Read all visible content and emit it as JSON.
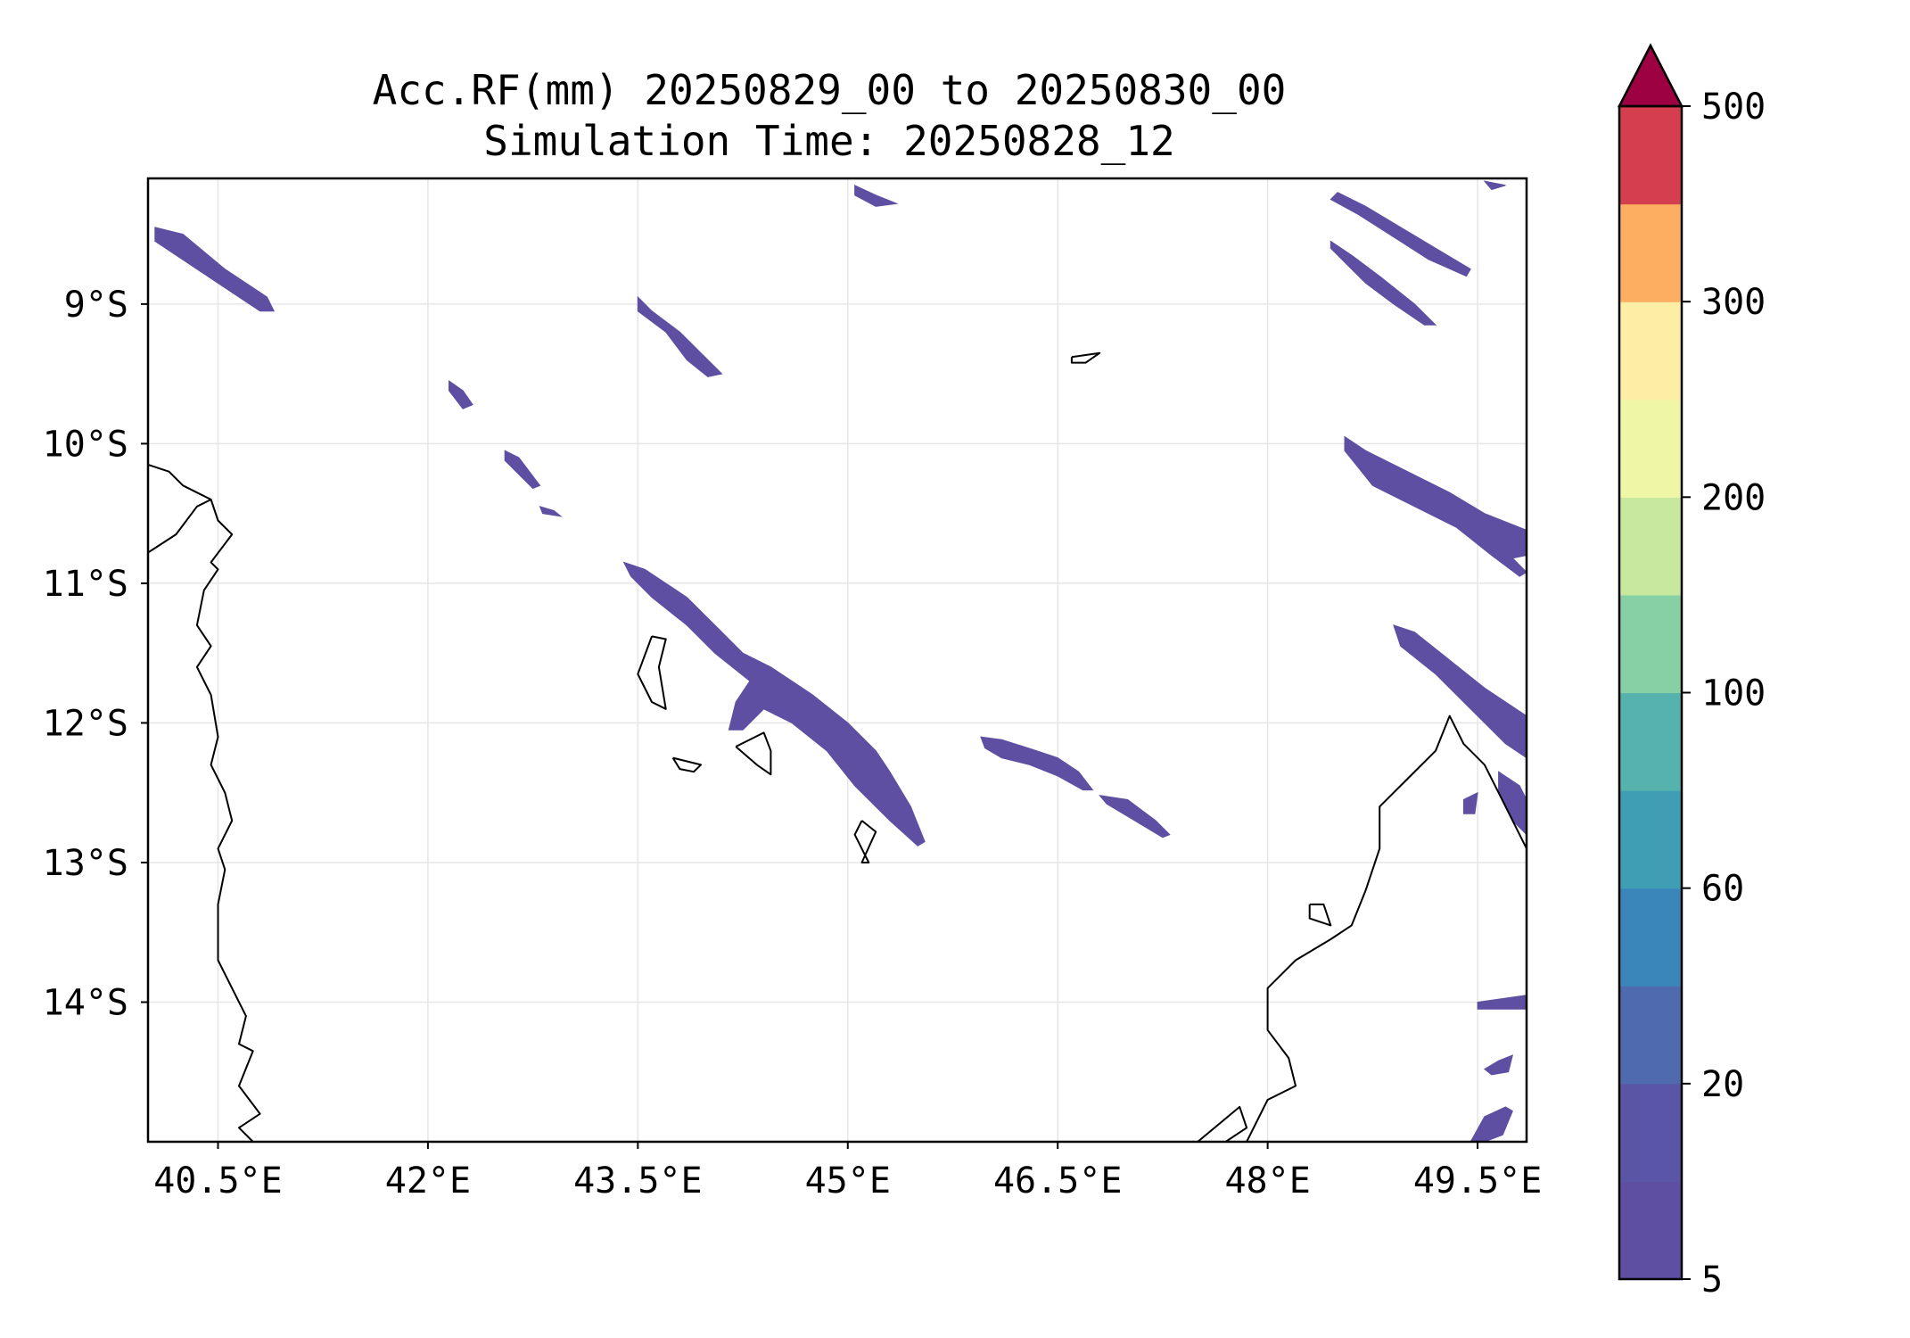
{
  "title": {
    "line1": "Acc.RF(mm) 20250829_00 to 20250830_00",
    "line2": "Simulation Time: 20250828_12"
  },
  "map": {
    "lon_range": [
      40.0,
      49.85
    ],
    "lat_range": [
      -15.0,
      -8.1
    ],
    "x_ticks": [
      {
        "value": 40.5,
        "label": "40.5°E"
      },
      {
        "value": 42.0,
        "label": "42°E"
      },
      {
        "value": 43.5,
        "label": "43.5°E"
      },
      {
        "value": 45.0,
        "label": "45°E"
      },
      {
        "value": 46.5,
        "label": "46.5°E"
      },
      {
        "value": 48.0,
        "label": "48°E"
      },
      {
        "value": 49.5,
        "label": "49.5°E"
      }
    ],
    "y_ticks": [
      {
        "value": -9,
        "label": "9°S"
      },
      {
        "value": -10,
        "label": "10°S"
      },
      {
        "value": -11,
        "label": "11°S"
      },
      {
        "value": -12,
        "label": "12°S"
      },
      {
        "value": -13,
        "label": "13°S"
      },
      {
        "value": -14,
        "label": "14°S"
      }
    ],
    "rain_color": "#5e4fa2",
    "rain_bands": [
      [
        [
          40.05,
          -8.45
        ],
        [
          40.25,
          -8.5
        ],
        [
          40.55,
          -8.75
        ],
        [
          40.85,
          -8.95
        ],
        [
          40.9,
          -9.05
        ],
        [
          40.8,
          -9.05
        ],
        [
          40.5,
          -8.85
        ],
        [
          40.2,
          -8.65
        ],
        [
          40.05,
          -8.55
        ]
      ],
      [
        [
          45.05,
          -8.15
        ],
        [
          45.2,
          -8.22
        ],
        [
          45.35,
          -8.28
        ],
        [
          45.2,
          -8.3
        ],
        [
          45.05,
          -8.22
        ]
      ],
      [
        [
          43.5,
          -8.95
        ],
        [
          43.6,
          -9.05
        ],
        [
          43.8,
          -9.2
        ],
        [
          44.0,
          -9.4
        ],
        [
          44.1,
          -9.5
        ],
        [
          44.0,
          -9.52
        ],
        [
          43.85,
          -9.4
        ],
        [
          43.7,
          -9.2
        ],
        [
          43.5,
          -9.05
        ]
      ],
      [
        [
          42.15,
          -9.55
        ],
        [
          42.25,
          -9.62
        ],
        [
          42.32,
          -9.72
        ],
        [
          42.25,
          -9.75
        ],
        [
          42.15,
          -9.62
        ]
      ],
      [
        [
          42.55,
          -10.05
        ],
        [
          42.65,
          -10.1
        ],
        [
          42.8,
          -10.3
        ],
        [
          42.75,
          -10.32
        ],
        [
          42.55,
          -10.12
        ]
      ],
      [
        [
          42.8,
          -10.45
        ],
        [
          42.9,
          -10.48
        ],
        [
          42.95,
          -10.52
        ],
        [
          42.82,
          -10.5
        ]
      ],
      [
        [
          43.4,
          -10.85
        ],
        [
          43.55,
          -10.9
        ],
        [
          43.85,
          -11.1
        ],
        [
          44.05,
          -11.3
        ],
        [
          44.25,
          -11.5
        ],
        [
          44.45,
          -11.6
        ],
        [
          44.75,
          -11.8
        ],
        [
          45.0,
          -12.0
        ],
        [
          45.2,
          -12.2
        ],
        [
          45.3,
          -12.35
        ],
        [
          45.45,
          -12.6
        ],
        [
          45.55,
          -12.85
        ],
        [
          45.5,
          -12.88
        ],
        [
          45.3,
          -12.7
        ],
        [
          45.05,
          -12.45
        ],
        [
          44.85,
          -12.2
        ],
        [
          44.6,
          -12.0
        ],
        [
          44.4,
          -11.9
        ],
        [
          44.25,
          -12.05
        ],
        [
          44.15,
          -12.05
        ],
        [
          44.2,
          -11.85
        ],
        [
          44.3,
          -11.7
        ],
        [
          44.05,
          -11.5
        ],
        [
          43.85,
          -11.3
        ],
        [
          43.6,
          -11.1
        ],
        [
          43.45,
          -10.95
        ]
      ],
      [
        [
          45.95,
          -12.1
        ],
        [
          46.1,
          -12.12
        ],
        [
          46.35,
          -12.2
        ],
        [
          46.5,
          -12.25
        ],
        [
          46.65,
          -12.35
        ],
        [
          46.75,
          -12.48
        ],
        [
          46.68,
          -12.48
        ],
        [
          46.5,
          -12.38
        ],
        [
          46.3,
          -12.3
        ],
        [
          46.1,
          -12.25
        ],
        [
          45.98,
          -12.18
        ]
      ],
      [
        [
          46.8,
          -12.52
        ],
        [
          47.0,
          -12.55
        ],
        [
          47.2,
          -12.7
        ],
        [
          47.3,
          -12.8
        ],
        [
          47.25,
          -12.82
        ],
        [
          47.05,
          -12.7
        ],
        [
          46.85,
          -12.58
        ]
      ],
      [
        [
          48.5,
          -8.2
        ],
        [
          48.7,
          -8.3
        ],
        [
          48.95,
          -8.45
        ],
        [
          49.2,
          -8.6
        ],
        [
          49.45,
          -8.75
        ],
        [
          49.42,
          -8.8
        ],
        [
          49.15,
          -8.68
        ],
        [
          48.9,
          -8.52
        ],
        [
          48.65,
          -8.36
        ],
        [
          48.45,
          -8.25
        ]
      ],
      [
        [
          48.45,
          -8.55
        ],
        [
          48.6,
          -8.65
        ],
        [
          48.8,
          -8.8
        ],
        [
          49.05,
          -9.0
        ],
        [
          49.2,
          -9.15
        ],
        [
          49.12,
          -9.15
        ],
        [
          48.9,
          -9.0
        ],
        [
          48.7,
          -8.85
        ],
        [
          48.45,
          -8.6
        ]
      ],
      [
        [
          49.55,
          -8.12
        ],
        [
          49.7,
          -8.15
        ],
        [
          49.6,
          -8.18
        ]
      ],
      [
        [
          48.55,
          -9.95
        ],
        [
          48.7,
          -10.05
        ],
        [
          49.0,
          -10.2
        ],
        [
          49.3,
          -10.35
        ],
        [
          49.55,
          -10.5
        ],
        [
          49.85,
          -10.62
        ],
        [
          49.85,
          -10.8
        ],
        [
          49.75,
          -10.82
        ],
        [
          49.85,
          -10.92
        ],
        [
          49.8,
          -10.95
        ],
        [
          49.6,
          -10.8
        ],
        [
          49.35,
          -10.6
        ],
        [
          49.05,
          -10.45
        ],
        [
          48.75,
          -10.3
        ],
        [
          48.55,
          -10.05
        ]
      ],
      [
        [
          48.9,
          -11.3
        ],
        [
          49.05,
          -11.35
        ],
        [
          49.3,
          -11.55
        ],
        [
          49.55,
          -11.75
        ],
        [
          49.85,
          -11.95
        ],
        [
          49.85,
          -12.25
        ],
        [
          49.7,
          -12.15
        ],
        [
          49.45,
          -11.9
        ],
        [
          49.2,
          -11.65
        ],
        [
          48.95,
          -11.45
        ]
      ],
      [
        [
          49.65,
          -12.35
        ],
        [
          49.8,
          -12.45
        ],
        [
          49.85,
          -12.55
        ],
        [
          49.85,
          -12.8
        ],
        [
          49.75,
          -12.7
        ],
        [
          49.65,
          -12.5
        ]
      ],
      [
        [
          49.4,
          -12.55
        ],
        [
          49.5,
          -12.5
        ],
        [
          49.48,
          -12.65
        ],
        [
          49.4,
          -12.65
        ]
      ],
      [
        [
          49.5,
          -14.0
        ],
        [
          49.85,
          -13.95
        ],
        [
          49.85,
          -14.05
        ],
        [
          49.7,
          -14.05
        ],
        [
          49.5,
          -14.05
        ]
      ],
      [
        [
          49.65,
          -14.42
        ],
        [
          49.75,
          -14.38
        ],
        [
          49.72,
          -14.5
        ],
        [
          49.6,
          -14.52
        ],
        [
          49.55,
          -14.48
        ]
      ],
      [
        [
          49.55,
          -14.82
        ],
        [
          49.7,
          -14.75
        ],
        [
          49.75,
          -14.78
        ],
        [
          49.68,
          -14.95
        ],
        [
          49.55,
          -15.0
        ],
        [
          49.45,
          -15.0
        ]
      ]
    ],
    "coastlines": [
      [
        [
          40.0,
          -10.15
        ],
        [
          40.15,
          -10.2
        ],
        [
          40.25,
          -10.3
        ],
        [
          40.35,
          -10.35
        ],
        [
          40.45,
          -10.4
        ],
        [
          40.5,
          -10.55
        ],
        [
          40.6,
          -10.65
        ],
        [
          40.45,
          -10.85
        ],
        [
          40.5,
          -10.9
        ],
        [
          40.4,
          -11.05
        ],
        [
          40.35,
          -11.3
        ],
        [
          40.45,
          -11.45
        ],
        [
          40.35,
          -11.6
        ],
        [
          40.45,
          -11.8
        ],
        [
          40.5,
          -12.1
        ],
        [
          40.45,
          -12.3
        ],
        [
          40.55,
          -12.5
        ],
        [
          40.6,
          -12.7
        ],
        [
          40.5,
          -12.9
        ],
        [
          40.55,
          -13.05
        ],
        [
          40.5,
          -13.3
        ],
        [
          40.5,
          -13.7
        ],
        [
          40.6,
          -13.9
        ],
        [
          40.7,
          -14.1
        ],
        [
          40.65,
          -14.3
        ],
        [
          40.75,
          -14.35
        ],
        [
          40.65,
          -14.6
        ],
        [
          40.8,
          -14.8
        ],
        [
          40.65,
          -14.9
        ],
        [
          40.75,
          -15.0
        ]
      ],
      [
        [
          40.0,
          -10.78
        ],
        [
          40.2,
          -10.65
        ],
        [
          40.35,
          -10.45
        ],
        [
          40.45,
          -10.4
        ]
      ],
      [
        [
          43.6,
          -11.38
        ],
        [
          43.5,
          -11.65
        ],
        [
          43.6,
          -11.85
        ],
        [
          43.7,
          -11.9
        ],
        [
          43.65,
          -11.6
        ],
        [
          43.7,
          -11.4
        ],
        [
          43.6,
          -11.38
        ]
      ],
      [
        [
          43.75,
          -12.25
        ],
        [
          43.95,
          -12.3
        ],
        [
          43.9,
          -12.35
        ],
        [
          43.8,
          -12.33
        ],
        [
          43.75,
          -12.25
        ]
      ],
      [
        [
          44.2,
          -12.17
        ],
        [
          44.4,
          -12.07
        ],
        [
          44.45,
          -12.2
        ],
        [
          44.45,
          -12.37
        ],
        [
          44.35,
          -12.3
        ],
        [
          44.2,
          -12.17
        ]
      ],
      [
        [
          45.1,
          -12.7
        ],
        [
          45.2,
          -12.78
        ],
        [
          45.1,
          -13.0
        ],
        [
          45.15,
          -13.0
        ],
        [
          45.05,
          -12.8
        ],
        [
          45.1,
          -12.7
        ]
      ],
      [
        [
          46.6,
          -9.38
        ],
        [
          46.8,
          -9.35
        ],
        [
          46.7,
          -9.42
        ],
        [
          46.6,
          -9.42
        ],
        [
          46.6,
          -9.38
        ]
      ],
      [
        [
          47.5,
          -15.0
        ],
        [
          47.8,
          -14.75
        ],
        [
          47.85,
          -14.9
        ],
        [
          47.7,
          -15.0
        ]
      ],
      [
        [
          47.85,
          -15.0
        ],
        [
          48.0,
          -14.7
        ],
        [
          48.2,
          -14.6
        ],
        [
          48.15,
          -14.4
        ],
        [
          48.0,
          -14.2
        ],
        [
          48.0,
          -13.9
        ],
        [
          48.2,
          -13.7
        ],
        [
          48.45,
          -13.55
        ],
        [
          48.6,
          -13.45
        ],
        [
          48.7,
          -13.2
        ],
        [
          48.8,
          -12.9
        ],
        [
          48.8,
          -12.6
        ],
        [
          49.0,
          -12.4
        ],
        [
          49.2,
          -12.2
        ],
        [
          49.3,
          -11.95
        ],
        [
          49.4,
          -12.15
        ],
        [
          49.55,
          -12.3
        ],
        [
          49.7,
          -12.6
        ],
        [
          49.85,
          -12.9
        ]
      ],
      [
        [
          48.3,
          -13.3
        ],
        [
          48.4,
          -13.3
        ],
        [
          48.45,
          -13.45
        ],
        [
          48.3,
          -13.4
        ],
        [
          48.3,
          -13.3
        ]
      ]
    ]
  },
  "colorbar": {
    "levels": [
      5,
      10,
      20,
      40,
      60,
      80,
      100,
      150,
      200,
      250,
      300,
      400,
      500
    ],
    "colors": [
      "#5e4fa2",
      "#5a55a6",
      "#4f6aae",
      "#3a86bb",
      "#3f9eb4",
      "#56b2ac",
      "#87cfa4",
      "#c7e89e",
      "#eff7a6",
      "#fdeea5",
      "#fdae61",
      "#d53e4f"
    ],
    "extend_color": "#9e0142",
    "tick_labels": [
      {
        "level": 5,
        "label": "5"
      },
      {
        "level": 20,
        "label": "20"
      },
      {
        "level": 60,
        "label": "60"
      },
      {
        "level": 100,
        "label": "100"
      },
      {
        "level": 200,
        "label": "200"
      },
      {
        "level": 300,
        "label": "300"
      },
      {
        "level": 500,
        "label": "500"
      }
    ]
  }
}
